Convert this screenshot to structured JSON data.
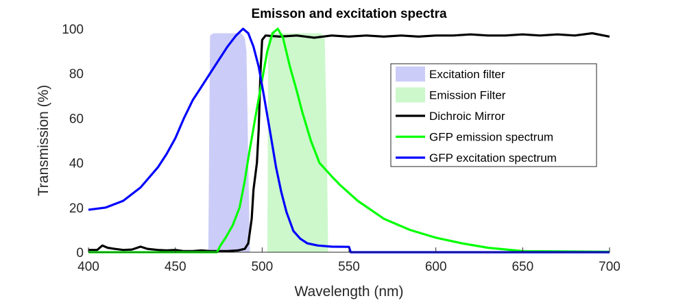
{
  "chart_data": {
    "type": "line",
    "title": "Emisson and excitation spectra",
    "xlabel": "Wavelength (nm)",
    "ylabel": "Transmission (%)",
    "xlim": [
      400,
      700
    ],
    "ylim": [
      0,
      100
    ],
    "xticks": [
      "400",
      "450",
      "500",
      "550",
      "600",
      "650",
      "700"
    ],
    "yticks": [
      "0",
      "20",
      "40",
      "60",
      "80",
      "100"
    ],
    "grid": false,
    "legend_position": "right",
    "series": [
      {
        "name": "Excitation filter",
        "kind": "area",
        "color": "#ccccf8",
        "points": [
          [
            469,
            0
          ],
          [
            470,
            97
          ],
          [
            472,
            98
          ],
          [
            488,
            98
          ],
          [
            490,
            96
          ],
          [
            491,
            90
          ],
          [
            492,
            40
          ],
          [
            493,
            0
          ]
        ]
      },
      {
        "name": "Emission Filter",
        "kind": "area",
        "color": "#ccf8cc",
        "points": [
          [
            503,
            0
          ],
          [
            503.5,
            96
          ],
          [
            505,
            98
          ],
          [
            534,
            98
          ],
          [
            536,
            96
          ],
          [
            537,
            60
          ],
          [
            538,
            0
          ]
        ]
      },
      {
        "name": "Dichroic Mirror",
        "kind": "line",
        "color": "#000000",
        "points": [
          [
            400,
            1
          ],
          [
            405,
            1
          ],
          [
            408,
            3
          ],
          [
            411,
            2
          ],
          [
            415,
            1.5
          ],
          [
            420,
            1
          ],
          [
            425,
            1.2
          ],
          [
            430,
            2.5
          ],
          [
            434,
            1.5
          ],
          [
            440,
            1
          ],
          [
            445,
            0.8
          ],
          [
            450,
            1
          ],
          [
            455,
            0.5
          ],
          [
            460,
            0.5
          ],
          [
            465,
            0.8
          ],
          [
            470,
            0.5
          ],
          [
            480,
            0.5
          ],
          [
            486,
            0.8
          ],
          [
            490,
            1.5
          ],
          [
            492,
            4
          ],
          [
            494,
            15
          ],
          [
            495,
            28
          ],
          [
            497,
            40
          ],
          [
            498,
            55
          ],
          [
            499,
            80
          ],
          [
            500,
            95
          ],
          [
            502,
            97
          ],
          [
            510,
            96.5
          ],
          [
            520,
            97
          ],
          [
            530,
            96
          ],
          [
            540,
            97
          ],
          [
            550,
            96.5
          ],
          [
            560,
            97
          ],
          [
            570,
            96.5
          ],
          [
            580,
            97
          ],
          [
            590,
            96.5
          ],
          [
            600,
            97
          ],
          [
            610,
            97
          ],
          [
            620,
            97.5
          ],
          [
            630,
            97
          ],
          [
            640,
            97
          ],
          [
            650,
            97.5
          ],
          [
            660,
            97
          ],
          [
            670,
            97.5
          ],
          [
            680,
            97
          ],
          [
            690,
            98
          ],
          [
            700,
            96.5
          ]
        ]
      },
      {
        "name": "GFP emission spectrum",
        "kind": "line",
        "color": "#00ff00",
        "points": [
          [
            400,
            0
          ],
          [
            474,
            0
          ],
          [
            476,
            3
          ],
          [
            479,
            6.5
          ],
          [
            483,
            12
          ],
          [
            487,
            20
          ],
          [
            490,
            32
          ],
          [
            492,
            42
          ],
          [
            496,
            60
          ],
          [
            499,
            73
          ],
          [
            503,
            90
          ],
          [
            506,
            98
          ],
          [
            509,
            100
          ],
          [
            512,
            96
          ],
          [
            516,
            83
          ],
          [
            520,
            72
          ],
          [
            523,
            63
          ],
          [
            528,
            50
          ],
          [
            533,
            40
          ],
          [
            540,
            34
          ],
          [
            545,
            30
          ],
          [
            555,
            23
          ],
          [
            570,
            15
          ],
          [
            585,
            10
          ],
          [
            600,
            6.5
          ],
          [
            615,
            4
          ],
          [
            630,
            2
          ],
          [
            650,
            0.5
          ],
          [
            700,
            0.2
          ]
        ]
      },
      {
        "name": "GFP excitation spectrum",
        "kind": "line",
        "color": "#0000ff",
        "points": [
          [
            400,
            19
          ],
          [
            410,
            20
          ],
          [
            420,
            23
          ],
          [
            430,
            29
          ],
          [
            440,
            38
          ],
          [
            445,
            44
          ],
          [
            450,
            51
          ],
          [
            455,
            60
          ],
          [
            460,
            68
          ],
          [
            465,
            74
          ],
          [
            470,
            80
          ],
          [
            475,
            86
          ],
          [
            480,
            92
          ],
          [
            485,
            97
          ],
          [
            489,
            100
          ],
          [
            492,
            98
          ],
          [
            495,
            92
          ],
          [
            498,
            83
          ],
          [
            501,
            70
          ],
          [
            505,
            52
          ],
          [
            508,
            38
          ],
          [
            511,
            27
          ],
          [
            514,
            18
          ],
          [
            518,
            9.5
          ],
          [
            522,
            6
          ],
          [
            526,
            4
          ],
          [
            532,
            3
          ],
          [
            540,
            2.5
          ],
          [
            550,
            2.4
          ],
          [
            551,
            0
          ],
          [
            700,
            0
          ]
        ]
      }
    ]
  }
}
